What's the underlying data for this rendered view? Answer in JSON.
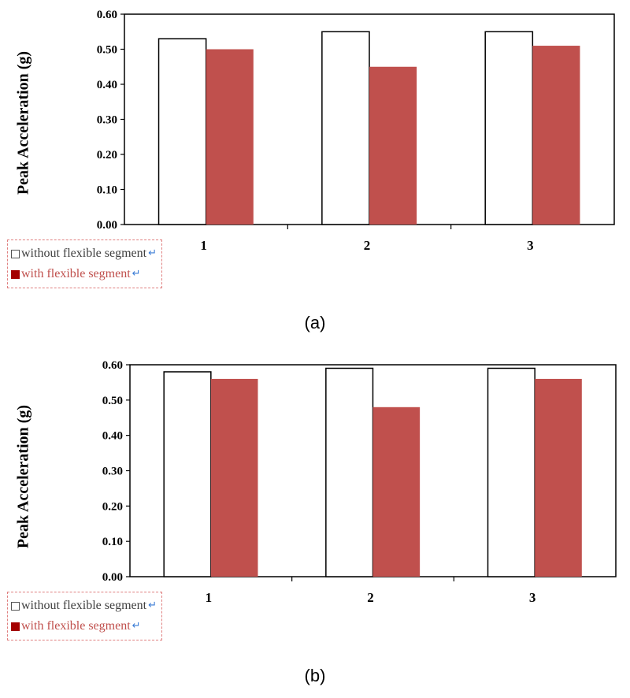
{
  "chart_data": [
    {
      "type": "bar",
      "ylabel": "Peak Acceleration (g)",
      "categories": [
        "1",
        "2",
        "3"
      ],
      "series": [
        {
          "name": "without flexible segment",
          "values": [
            0.53,
            0.55,
            0.55
          ],
          "color": "#ffffff"
        },
        {
          "name": "with flexible segment",
          "values": [
            0.5,
            0.45,
            0.51
          ],
          "color": "#c0504d"
        }
      ],
      "yticks": [
        "0.00",
        "0.10",
        "0.20",
        "0.30",
        "0.40",
        "0.50",
        "0.60"
      ],
      "ylim": [
        0,
        0.6
      ],
      "grid": false,
      "legend_position": "bottom-left",
      "legend": {
        "items": [
          {
            "label": "without flexible segment",
            "swatch_color": "#ffffff"
          },
          {
            "label": "with flexible segment",
            "swatch_color": "#a40000"
          }
        ]
      },
      "caption": "(a)"
    },
    {
      "type": "bar",
      "ylabel": "Peak Acceleration (g)",
      "categories": [
        "1",
        "2",
        "3"
      ],
      "series": [
        {
          "name": "without flexible segment",
          "values": [
            0.58,
            0.59,
            0.59
          ],
          "color": "#ffffff"
        },
        {
          "name": "with flexible segment",
          "values": [
            0.56,
            0.48,
            0.56
          ],
          "color": "#c0504d"
        }
      ],
      "yticks": [
        "0.00",
        "0.10",
        "0.20",
        "0.30",
        "0.40",
        "0.50",
        "0.60"
      ],
      "ylim": [
        0,
        0.6
      ],
      "grid": false,
      "legend_position": "bottom-left",
      "legend": {
        "items": [
          {
            "label": "without flexible segment",
            "swatch_color": "#ffffff"
          },
          {
            "label": "with flexible segment",
            "swatch_color": "#a40000"
          }
        ]
      },
      "caption": "(b)"
    }
  ]
}
